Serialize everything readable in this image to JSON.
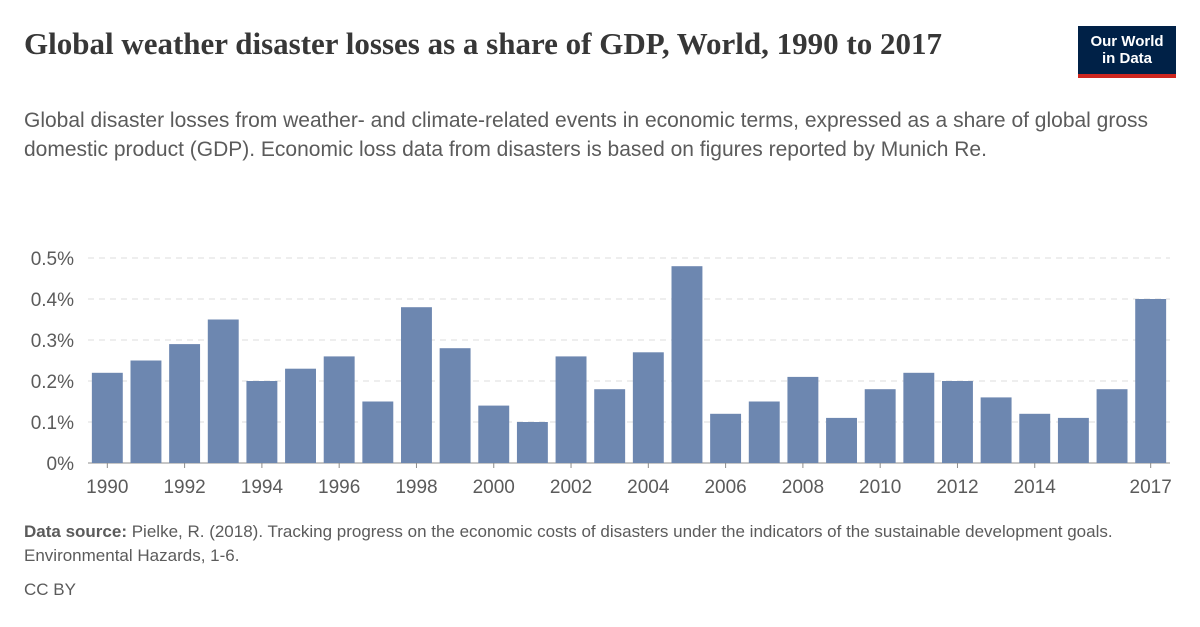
{
  "header": {
    "title": "Global weather disaster losses as a share of GDP, World, 1990 to 2017",
    "subtitle": "Global disaster losses from weather- and climate-related events in economic terms, expressed as a share of global gross domestic product (GDP). Economic loss data from disasters is based on figures reported by Munich Re."
  },
  "logo": {
    "line1": "Our World",
    "line2": "in Data",
    "bg_color": "#002147",
    "accent_color": "#ce261e"
  },
  "footer": {
    "source_label": "Data source:",
    "source_text": "Pielke, R. (2018). Tracking progress on the economic costs of disasters under the indicators of the sustainable development goals. Environmental Hazards, 1-6.",
    "license": "CC BY"
  },
  "chart_data": {
    "type": "bar",
    "title": "Global weather disaster losses as a share of GDP, World, 1990 to 2017",
    "categories": [
      "1990",
      "1991",
      "1992",
      "1993",
      "1994",
      "1995",
      "1996",
      "1997",
      "1998",
      "1999",
      "2000",
      "2001",
      "2002",
      "2003",
      "2004",
      "2005",
      "2006",
      "2007",
      "2008",
      "2009",
      "2010",
      "2011",
      "2012",
      "2013",
      "2014",
      "2015",
      "2016",
      "2017"
    ],
    "values": [
      0.22,
      0.25,
      0.29,
      0.35,
      0.2,
      0.23,
      0.26,
      0.15,
      0.38,
      0.28,
      0.14,
      0.1,
      0.26,
      0.18,
      0.27,
      0.48,
      0.12,
      0.15,
      0.21,
      0.11,
      0.18,
      0.22,
      0.2,
      0.16,
      0.12,
      0.11,
      0.18,
      0.4
    ],
    "unit": "%",
    "ylim": [
      0,
      0.5
    ],
    "yticks": [
      "0%",
      "0.1%",
      "0.2%",
      "0.3%",
      "0.4%",
      "0.5%"
    ],
    "ytick_values": [
      0,
      0.1,
      0.2,
      0.3,
      0.4,
      0.5
    ],
    "xtick_labels": [
      "1990",
      "1992",
      "1994",
      "1996",
      "1998",
      "2000",
      "2002",
      "2004",
      "2006",
      "2008",
      "2010",
      "2012",
      "2014",
      "2017"
    ],
    "bar_color": "#6d87b0",
    "grid": true,
    "legend": "none"
  }
}
